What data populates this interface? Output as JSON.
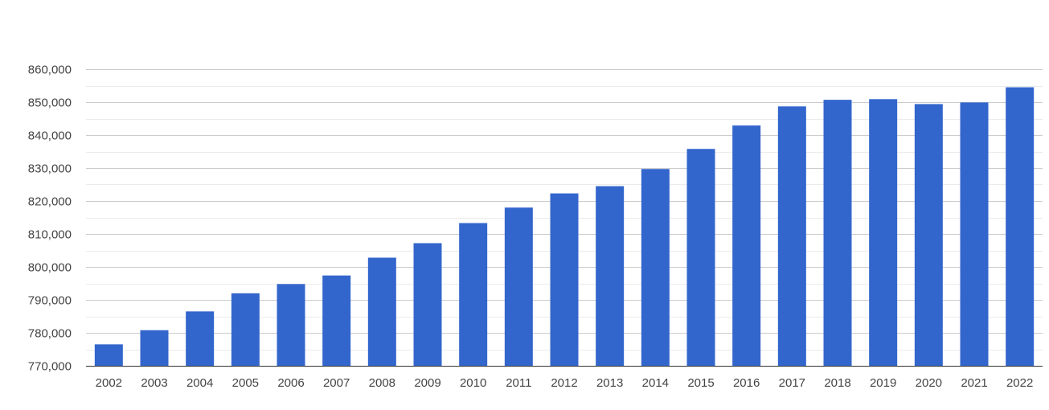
{
  "chart_data": {
    "type": "bar",
    "title": "",
    "xlabel": "",
    "ylabel": "",
    "categories": [
      "2002",
      "2003",
      "2004",
      "2005",
      "2006",
      "2007",
      "2008",
      "2009",
      "2010",
      "2011",
      "2012",
      "2013",
      "2014",
      "2015",
      "2016",
      "2017",
      "2018",
      "2019",
      "2020",
      "2021",
      "2022"
    ],
    "values": [
      776500,
      780800,
      786500,
      792000,
      794800,
      797400,
      802800,
      807200,
      813300,
      818000,
      822300,
      824500,
      829700,
      835800,
      842900,
      848700,
      850700,
      850900,
      849400,
      849900,
      854500
    ],
    "ylim": [
      770000,
      860000
    ],
    "yticks": [
      770000,
      780000,
      790000,
      800000,
      810000,
      820000,
      830000,
      840000,
      850000,
      860000
    ],
    "ytick_labels": [
      "770,000",
      "780,000",
      "790,000",
      "800,000",
      "810,000",
      "820,000",
      "830,000",
      "840,000",
      "850,000",
      "860,000"
    ],
    "grid": true,
    "legend": "none",
    "bar_color": "#3366cc"
  }
}
